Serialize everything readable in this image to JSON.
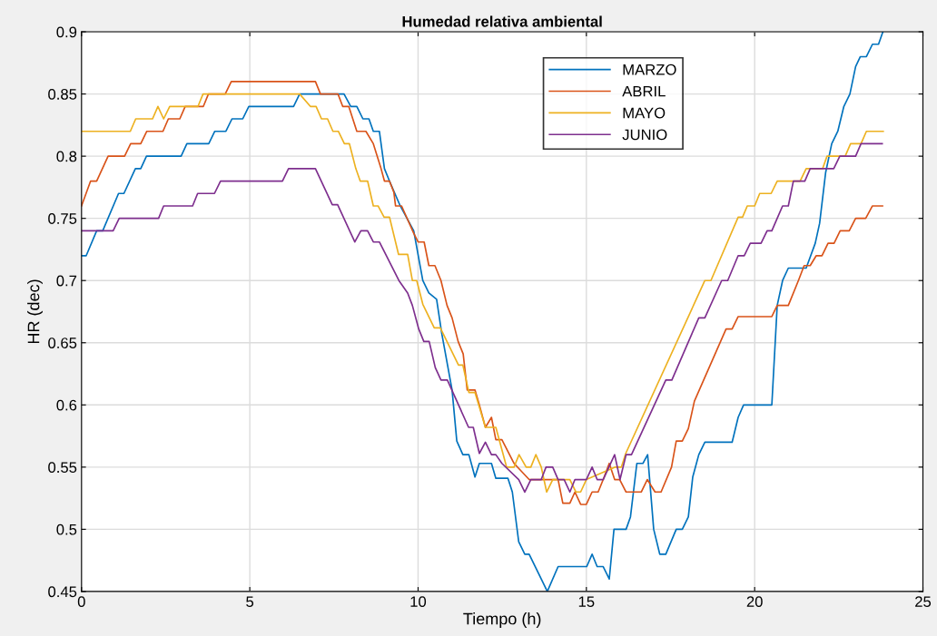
{
  "chart_data": {
    "type": "line",
    "title": "Humedad relativa ambiental",
    "xlabel": "Tiempo (h)",
    "ylabel": "HR (dec)",
    "xlim": [
      0,
      25
    ],
    "xticks": [
      0,
      5,
      10,
      15,
      20,
      25
    ],
    "ylim": [
      0.45,
      0.9
    ],
    "yticks": [
      0.45,
      0.5,
      0.55,
      0.6,
      0.65,
      0.7,
      0.75,
      0.8,
      0.85,
      0.9
    ],
    "grid": true,
    "legend": "top right",
    "line_style": "solid",
    "marker": "none",
    "series": [
      {
        "name": "MARZO",
        "color": "#0072bd",
        "x": [
          0,
          0.14,
          0.45,
          0.63,
          1.1,
          1.26,
          1.6,
          1.76,
          1.93,
          2.96,
          3.13,
          3.78,
          3.96,
          4.29,
          4.47,
          4.79,
          4.97,
          6.3,
          6.48,
          7.8,
          8.0,
          8.18,
          8.36,
          8.54,
          8.67,
          8.85,
          9.0,
          9.15,
          9.47,
          9.87,
          10.14,
          10.32,
          10.55,
          10.7,
          11.01,
          11.15,
          11.33,
          11.51,
          11.69,
          11.82,
          12.18,
          12.31,
          12.67,
          12.8,
          12.99,
          13.17,
          13.3,
          13.84,
          14.16,
          15.01,
          15.17,
          15.32,
          15.5,
          15.68,
          15.82,
          16.18,
          16.31,
          16.5,
          16.68,
          16.82,
          17.0,
          17.18,
          17.36,
          17.67,
          17.85,
          18.03,
          18.16,
          18.34,
          18.52,
          19.33,
          19.51,
          19.67,
          20.51,
          20.67,
          20.83,
          21.0,
          21.53,
          21.8,
          21.93,
          22.11,
          22.29,
          22.47,
          22.65,
          22.83,
          23.0,
          23.14,
          23.32,
          23.5,
          23.68,
          23.81
        ],
        "values": [
          0.72,
          0.72,
          0.74,
          0.74,
          0.77,
          0.77,
          0.79,
          0.79,
          0.8,
          0.8,
          0.81,
          0.81,
          0.82,
          0.82,
          0.83,
          0.83,
          0.84,
          0.84,
          0.85,
          0.85,
          0.84,
          0.84,
          0.83,
          0.83,
          0.82,
          0.82,
          0.79,
          0.78,
          0.76,
          0.74,
          0.7,
          0.69,
          0.685,
          0.658,
          0.612,
          0.571,
          0.56,
          0.56,
          0.542,
          0.553,
          0.553,
          0.541,
          0.541,
          0.53,
          0.49,
          0.48,
          0.48,
          0.45,
          0.47,
          0.47,
          0.48,
          0.47,
          0.47,
          0.46,
          0.5,
          0.5,
          0.51,
          0.553,
          0.553,
          0.56,
          0.5,
          0.48,
          0.48,
          0.5,
          0.5,
          0.51,
          0.542,
          0.56,
          0.57,
          0.57,
          0.59,
          0.6,
          0.6,
          0.68,
          0.7,
          0.71,
          0.71,
          0.73,
          0.746,
          0.787,
          0.81,
          0.82,
          0.84,
          0.85,
          0.872,
          0.88,
          0.88,
          0.89,
          0.89,
          0.9
        ]
      },
      {
        "name": "ABRIL",
        "color": "#d95319",
        "x": [
          0,
          0.27,
          0.45,
          0.79,
          1.28,
          1.46,
          1.76,
          1.94,
          2.42,
          2.58,
          2.92,
          3.08,
          3.62,
          3.77,
          4.27,
          4.45,
          6.95,
          7.1,
          7.62,
          7.76,
          7.94,
          8.18,
          8.45,
          8.67,
          8.9,
          9.0,
          9.15,
          9.28,
          9.33,
          9.51,
          9.87,
          10.0,
          10.18,
          10.32,
          10.5,
          10.68,
          10.86,
          11.01,
          11.19,
          11.34,
          11.46,
          11.69,
          11.82,
          12.0,
          12.18,
          12.31,
          12.49,
          12.85,
          13.3,
          14.16,
          14.3,
          14.51,
          14.66,
          14.83,
          15.0,
          15.17,
          15.35,
          15.5,
          15.68,
          15.84,
          15.99,
          16.18,
          16.63,
          16.81,
          17.04,
          17.22,
          17.53,
          17.67,
          17.85,
          18.03,
          18.21,
          19.15,
          19.33,
          19.51,
          20.51,
          20.67,
          21.0,
          21.3,
          21.47,
          21.65,
          21.83,
          22.0,
          22.18,
          22.36,
          22.54,
          22.81,
          23.0,
          23.3,
          23.5,
          23.64,
          23.8
        ],
        "values": [
          0.76,
          0.78,
          0.78,
          0.8,
          0.8,
          0.81,
          0.81,
          0.82,
          0.82,
          0.83,
          0.83,
          0.84,
          0.84,
          0.85,
          0.85,
          0.86,
          0.86,
          0.85,
          0.85,
          0.84,
          0.84,
          0.82,
          0.82,
          0.81,
          0.79,
          0.78,
          0.78,
          0.771,
          0.76,
          0.76,
          0.738,
          0.731,
          0.731,
          0.712,
          0.712,
          0.7,
          0.68,
          0.67,
          0.651,
          0.641,
          0.612,
          0.612,
          0.6,
          0.582,
          0.59,
          0.572,
          0.572,
          0.553,
          0.54,
          0.54,
          0.521,
          0.521,
          0.53,
          0.52,
          0.52,
          0.53,
          0.53,
          0.54,
          0.553,
          0.54,
          0.54,
          0.53,
          0.53,
          0.54,
          0.53,
          0.53,
          0.55,
          0.571,
          0.571,
          0.581,
          0.603,
          0.661,
          0.661,
          0.671,
          0.671,
          0.68,
          0.68,
          0.7,
          0.712,
          0.712,
          0.72,
          0.72,
          0.73,
          0.73,
          0.74,
          0.74,
          0.75,
          0.75,
          0.76,
          0.76,
          0.76
        ]
      },
      {
        "name": "MAYO",
        "color": "#edb120",
        "x": [
          0,
          1.45,
          1.61,
          2.11,
          2.27,
          2.44,
          2.62,
          3.46,
          3.61,
          6.48,
          6.8,
          6.97,
          7.13,
          7.31,
          7.47,
          7.63,
          7.81,
          7.96,
          8.15,
          8.28,
          8.5,
          8.67,
          8.81,
          8.99,
          9.15,
          9.42,
          9.69,
          9.83,
          9.96,
          10.14,
          10.48,
          10.66,
          11.2,
          11.33,
          11.51,
          11.69,
          12.0,
          12.31,
          12.63,
          12.85,
          13.0,
          13.21,
          13.35,
          13.5,
          13.66,
          13.82,
          14.0,
          14.51,
          14.69,
          14.83,
          15.0,
          15.86,
          16.04,
          16.17,
          18.52,
          18.7,
          19.51,
          19.64,
          19.78,
          20.0,
          20.15,
          20.49,
          20.67,
          21.35,
          21.53,
          22.02,
          22.15,
          22.69,
          22.85,
          23.16,
          23.32,
          23.82
        ],
        "values": [
          0.82,
          0.82,
          0.83,
          0.83,
          0.84,
          0.83,
          0.84,
          0.84,
          0.85,
          0.85,
          0.84,
          0.84,
          0.83,
          0.83,
          0.82,
          0.82,
          0.81,
          0.81,
          0.79,
          0.78,
          0.78,
          0.76,
          0.76,
          0.751,
          0.751,
          0.721,
          0.721,
          0.7,
          0.7,
          0.681,
          0.662,
          0.662,
          0.632,
          0.632,
          0.61,
          0.61,
          0.582,
          0.582,
          0.55,
          0.55,
          0.56,
          0.55,
          0.55,
          0.56,
          0.55,
          0.53,
          0.54,
          0.54,
          0.53,
          0.53,
          0.54,
          0.55,
          0.55,
          0.561,
          0.7,
          0.7,
          0.751,
          0.751,
          0.76,
          0.76,
          0.77,
          0.77,
          0.78,
          0.78,
          0.79,
          0.79,
          0.8,
          0.8,
          0.81,
          0.81,
          0.82,
          0.82
        ]
      },
      {
        "name": "JUNIO",
        "color": "#7e2f8e",
        "x": [
          0,
          0.94,
          1.12,
          2.29,
          2.44,
          3.3,
          3.45,
          3.95,
          4.13,
          5.97,
          6.15,
          6.95,
          7.45,
          7.61,
          8.12,
          8.3,
          8.5,
          8.67,
          8.85,
          9.43,
          9.69,
          9.83,
          10.02,
          10.17,
          10.33,
          10.51,
          10.68,
          10.87,
          11.5,
          11.64,
          11.82,
          12.0,
          12.18,
          12.31,
          12.49,
          12.99,
          13.17,
          13.35,
          13.66,
          13.8,
          14.0,
          14.16,
          14.34,
          14.51,
          14.66,
          15.0,
          15.17,
          15.32,
          15.5,
          15.84,
          16.0,
          16.18,
          16.34,
          17.36,
          17.54,
          18.34,
          18.52,
          19.02,
          19.2,
          19.51,
          19.69,
          19.87,
          20.19,
          20.37,
          20.51,
          20.67,
          20.83,
          21.0,
          21.15,
          21.49,
          21.65,
          22.35,
          22.53,
          23.0,
          23.16,
          23.79
        ],
        "values": [
          0.74,
          0.74,
          0.75,
          0.75,
          0.76,
          0.76,
          0.77,
          0.77,
          0.78,
          0.78,
          0.79,
          0.79,
          0.761,
          0.761,
          0.731,
          0.74,
          0.74,
          0.731,
          0.731,
          0.7,
          0.69,
          0.68,
          0.661,
          0.651,
          0.651,
          0.63,
          0.62,
          0.62,
          0.582,
          0.582,
          0.561,
          0.57,
          0.56,
          0.56,
          0.553,
          0.54,
          0.53,
          0.54,
          0.54,
          0.55,
          0.55,
          0.54,
          0.54,
          0.53,
          0.54,
          0.54,
          0.55,
          0.54,
          0.54,
          0.56,
          0.54,
          0.56,
          0.56,
          0.62,
          0.62,
          0.67,
          0.67,
          0.7,
          0.7,
          0.72,
          0.72,
          0.73,
          0.73,
          0.74,
          0.74,
          0.75,
          0.76,
          0.76,
          0.78,
          0.78,
          0.79,
          0.79,
          0.8,
          0.8,
          0.81,
          0.81
        ]
      }
    ]
  }
}
